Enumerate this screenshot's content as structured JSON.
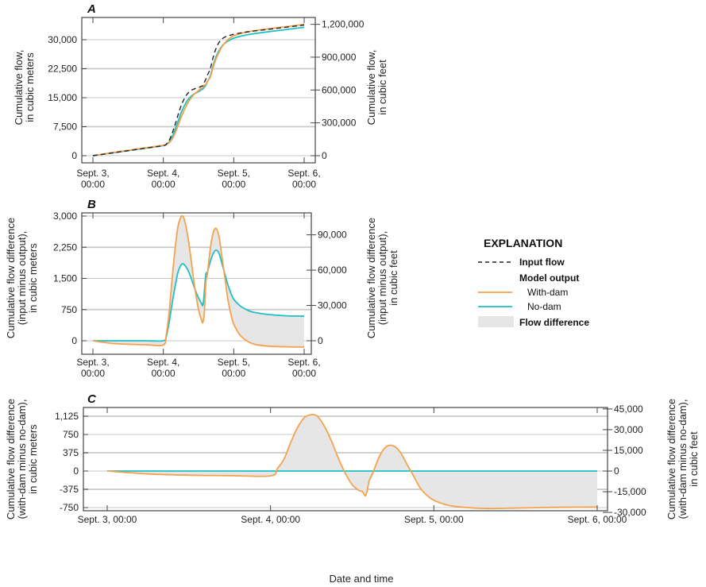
{
  "colors": {
    "input": "#222222",
    "with_dam": "#f4a24d",
    "no_dam": "#1fbfc4",
    "fill": "#e6e6e6",
    "grid": "#c9c9c9"
  },
  "legend": {
    "title": "EXPLANATION",
    "input_flow": "Input flow",
    "model_output": "Model output",
    "with_dam": "With-dam",
    "no_dam": "No-dam",
    "flow_difference": "Flow difference"
  },
  "xlabel": "Date and time",
  "chart_data": [
    {
      "panel_label": "A",
      "type": "line",
      "ylabel_left": [
        "Cumulative flow,",
        "in cubic meters"
      ],
      "ylabel_right": [
        "Cumulative flow,",
        "in cubic feet"
      ],
      "xtick_labels": [
        [
          "Sept. 3,",
          "00:00"
        ],
        [
          "Sept. 4,",
          "00:00"
        ],
        [
          "Sept. 5,",
          "00:00"
        ],
        [
          "Sept. 6,",
          "00:00"
        ]
      ],
      "yticks_left": [
        0,
        7500,
        15000,
        22500,
        30000
      ],
      "yticks_left_labels": [
        "0",
        "7,500",
        "15,000",
        "22,500",
        "30,000"
      ],
      "yticks_right": [
        0,
        300000,
        600000,
        900000,
        1200000
      ],
      "yticks_right_labels": [
        "0",
        "300,000",
        "600,000",
        "900,000",
        "1,200,000"
      ],
      "grid": true,
      "x": [
        "Sept. 3, 00:00",
        "Sept. 3, 06:00",
        "Sept. 3, 12:00",
        "Sept. 3, 18:00",
        "Sept. 4, 00:00",
        "Sept. 4, 01:00",
        "Sept. 4, 02:00",
        "Sept. 4, 03:00",
        "Sept. 4, 04:00",
        "Sept. 4, 05:00",
        "Sept. 4, 06:00",
        "Sept. 4, 06:30",
        "Sept. 4, 07:00",
        "Sept. 4, 08:00",
        "Sept. 4, 09:00",
        "Sept. 4, 10:00",
        "Sept. 4, 11:00",
        "Sept. 4, 12:00",
        "Sept. 4, 13:00",
        "Sept. 4, 13:30",
        "Sept. 4, 14:00",
        "Sept. 4, 14:30",
        "Sept. 4, 15:00",
        "Sept. 4, 16:00",
        "Sept. 4, 17:00",
        "Sept. 4, 18:00",
        "Sept. 4, 19:00",
        "Sept. 4, 20:00",
        "Sept. 4, 21:00",
        "Sept. 4, 22:00",
        "Sept. 4, 23:00",
        "Sept. 5, 00:00",
        "Sept. 5, 02:00",
        "Sept. 5, 04:00",
        "Sept. 5, 06:00",
        "Sept. 5, 08:00",
        "Sept. 5, 12:00",
        "Sept. 5, 18:00",
        "Sept. 6, 00:00"
      ],
      "series": [
        {
          "name": "Input flow",
          "style": "dashed",
          "color": "#222222",
          "values": [
            0,
            650,
            1300,
            1950,
            2600,
            3000,
            4000,
            5800,
            8000,
            10500,
            12800,
            13700,
            14500,
            15800,
            16600,
            17100,
            17400,
            17600,
            18000,
            18100,
            19000,
            19800,
            20800,
            22500,
            25500,
            27800,
            29300,
            30200,
            30700,
            31000,
            31200,
            31400,
            31700,
            31950,
            32150,
            32350,
            32700,
            33250,
            33800
          ]
        },
        {
          "name": "With-dam",
          "style": "solid",
          "color": "#f4a24d",
          "values": [
            0,
            710,
            1385,
            2045,
            2700,
            2850,
            3300,
            4300,
            5800,
            7750,
            9820,
            10700,
            11550,
            13150,
            14400,
            15450,
            16250,
            16850,
            17500,
            17660,
            18300,
            18400,
            19200,
            20300,
            22900,
            25100,
            26800,
            28200,
            29200,
            30000,
            30550,
            31000,
            31550,
            31930,
            32210,
            32450,
            32830,
            33395,
            33950
          ]
        },
        {
          "name": "No-dam",
          "style": "solid",
          "color": "#1fbfc4",
          "values": [
            0,
            650,
            1300,
            1950,
            2600,
            2900,
            3550,
            4900,
            6700,
            8850,
            10980,
            11850,
            12660,
            14050,
            15000,
            15700,
            16200,
            16570,
            17100,
            17240,
            17800,
            18200,
            19150,
            20600,
            23400,
            25620,
            27200,
            28350,
            29100,
            29650,
            30050,
            30400,
            30850,
            31190,
            31450,
            31680,
            32070,
            32650,
            33210
          ]
        }
      ]
    },
    {
      "panel_label": "B",
      "type": "area",
      "ylabel_left": [
        "Cumulative flow difference",
        "(input minus output),",
        "in cubic meters"
      ],
      "ylabel_right": [
        "Cumulative flow difference",
        "(input minus output),",
        "in cubic feet"
      ],
      "xtick_labels": [
        [
          "Sept. 3,",
          "00:00"
        ],
        [
          "Sept. 4,",
          "00:00"
        ],
        [
          "Sept. 5,",
          "00:00"
        ],
        [
          "Sept. 6,",
          "00:00"
        ]
      ],
      "yticks_left": [
        0,
        750,
        1500,
        2250,
        3000
      ],
      "yticks_left_labels": [
        "0",
        "750",
        "1,500",
        "2,250",
        "3,000"
      ],
      "yticks_right": [
        0,
        30000,
        60000,
        90000
      ],
      "yticks_right_labels": [
        "0",
        "30,000",
        "60,000",
        "90,000"
      ],
      "grid": true,
      "fill_between": [
        "With-dam",
        "No-dam"
      ],
      "x": [
        "Sept. 3, 00:00",
        "Sept. 3, 06:00",
        "Sept. 3, 12:00",
        "Sept. 3, 18:00",
        "Sept. 4, 00:00",
        "Sept. 4, 01:00",
        "Sept. 4, 02:00",
        "Sept. 4, 03:00",
        "Sept. 4, 04:00",
        "Sept. 4, 05:00",
        "Sept. 4, 06:00",
        "Sept. 4, 06:30",
        "Sept. 4, 07:00",
        "Sept. 4, 08:00",
        "Sept. 4, 09:00",
        "Sept. 4, 10:00",
        "Sept. 4, 11:00",
        "Sept. 4, 12:00",
        "Sept. 4, 13:00",
        "Sept. 4, 13:30",
        "Sept. 4, 14:00",
        "Sept. 4, 14:30",
        "Sept. 4, 15:00",
        "Sept. 4, 16:00",
        "Sept. 4, 17:00",
        "Sept. 4, 18:00",
        "Sept. 4, 19:00",
        "Sept. 4, 20:00",
        "Sept. 4, 21:00",
        "Sept. 4, 22:00",
        "Sept. 4, 23:00",
        "Sept. 5, 00:00",
        "Sept. 5, 02:00",
        "Sept. 5, 04:00",
        "Sept. 5, 06:00",
        "Sept. 5, 08:00",
        "Sept. 5, 12:00",
        "Sept. 5, 18:00",
        "Sept. 6, 00:00"
      ],
      "series": [
        {
          "name": "With-dam",
          "style": "solid",
          "color": "#f4a24d",
          "values": [
            0,
            -60,
            -85,
            -95,
            -100,
            150,
            700,
            1500,
            2200,
            2750,
            2980,
            3000,
            2950,
            2650,
            2200,
            1650,
            1150,
            750,
            500,
            440,
            700,
            1400,
            1600,
            2200,
            2600,
            2700,
            2500,
            2000,
            1500,
            1000,
            650,
            400,
            150,
            20,
            -60,
            -100,
            -130,
            -145,
            -150
          ]
        },
        {
          "name": "No-dam",
          "style": "solid",
          "color": "#1fbfc4",
          "values": [
            0,
            0,
            0,
            0,
            0,
            100,
            450,
            900,
            1300,
            1650,
            1820,
            1850,
            1840,
            1750,
            1600,
            1400,
            1200,
            1030,
            900,
            860,
            1200,
            1600,
            1650,
            1900,
            2100,
            2180,
            2100,
            1850,
            1600,
            1350,
            1150,
            1000,
            850,
            760,
            700,
            670,
            630,
            600,
            590
          ]
        }
      ]
    },
    {
      "panel_label": "C",
      "type": "area",
      "ylabel_left": [
        "Cumulative flow difference",
        "(with-dam minus no-dam),",
        "in cubic meters"
      ],
      "ylabel_right": [
        "Cumulative flow difference",
        "(with-dam minus no-dam),",
        "in cubic feet"
      ],
      "xtick_labels": [
        [
          "Sept. 3, 00:00"
        ],
        [
          "Sept. 4, 00:00"
        ],
        [
          "Sept. 5, 00:00"
        ],
        [
          "Sept. 6, 00:00"
        ]
      ],
      "yticks_left": [
        -750,
        -375,
        0,
        375,
        750,
        1125
      ],
      "yticks_left_labels": [
        "-750",
        "-375",
        "0",
        "375",
        "750",
        "1,125"
      ],
      "yticks_right": [
        -30000,
        -15000,
        0,
        15000,
        30000,
        45000
      ],
      "yticks_right_labels": [
        "-30,000",
        "-15,000",
        "0",
        "15,000",
        "30,000",
        "45,000"
      ],
      "grid": true,
      "fill_between": [
        "With-dam",
        "No-dam"
      ],
      "x": [
        "Sept. 3, 00:00",
        "Sept. 3, 06:00",
        "Sept. 3, 12:00",
        "Sept. 3, 18:00",
        "Sept. 4, 00:00",
        "Sept. 4, 01:00",
        "Sept. 4, 02:00",
        "Sept. 4, 03:00",
        "Sept. 4, 04:00",
        "Sept. 4, 05:00",
        "Sept. 4, 06:00",
        "Sept. 4, 06:30",
        "Sept. 4, 07:00",
        "Sept. 4, 08:00",
        "Sept. 4, 09:00",
        "Sept. 4, 10:00",
        "Sept. 4, 11:00",
        "Sept. 4, 12:00",
        "Sept. 4, 13:00",
        "Sept. 4, 13:30",
        "Sept. 4, 14:00",
        "Sept. 4, 14:30",
        "Sept. 4, 15:00",
        "Sept. 4, 16:00",
        "Sept. 4, 17:00",
        "Sept. 4, 18:00",
        "Sept. 4, 19:00",
        "Sept. 4, 20:00",
        "Sept. 4, 21:00",
        "Sept. 4, 22:00",
        "Sept. 4, 23:00",
        "Sept. 5, 00:00",
        "Sept. 5, 02:00",
        "Sept. 5, 04:00",
        "Sept. 5, 06:00",
        "Sept. 5, 08:00",
        "Sept. 5, 12:00",
        "Sept. 5, 18:00",
        "Sept. 6, 00:00"
      ],
      "series": [
        {
          "name": "With-dam",
          "style": "solid",
          "color": "#f4a24d",
          "values": [
            0,
            -60,
            -85,
            -95,
            -100,
            50,
            250,
            600,
            900,
            1100,
            1160,
            1150,
            1110,
            900,
            600,
            250,
            -50,
            -280,
            -400,
            -420,
            -500,
            -200,
            -50,
            300,
            500,
            520,
            400,
            150,
            -100,
            -350,
            -500,
            -600,
            -700,
            -740,
            -760,
            -770,
            -760,
            -745,
            -740
          ]
        },
        {
          "name": "No-dam",
          "style": "solid",
          "color": "#1fbfc4",
          "values": [
            0,
            0,
            0,
            0,
            0,
            0,
            0,
            0,
            0,
            0,
            0,
            0,
            0,
            0,
            0,
            0,
            0,
            0,
            0,
            0,
            0,
            0,
            0,
            0,
            0,
            0,
            0,
            0,
            0,
            0,
            0,
            0,
            0,
            0,
            0,
            0,
            0,
            0,
            0
          ]
        }
      ]
    }
  ]
}
